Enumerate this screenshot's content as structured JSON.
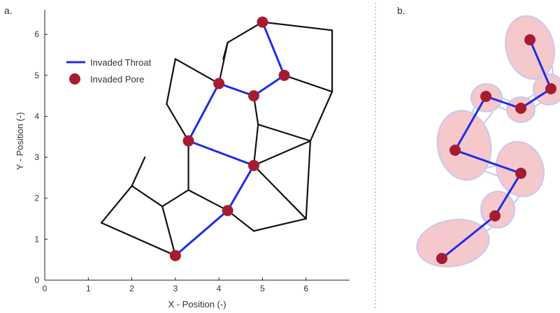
{
  "panel_a": {
    "label": "a.",
    "xlabel": "X - Position (-)",
    "ylabel": "Y - Position (-)",
    "xticks": [
      "0",
      "1",
      "2",
      "3",
      "4",
      "5",
      "6"
    ],
    "yticks": [
      "0",
      "1",
      "2",
      "3",
      "4",
      "5",
      "6"
    ],
    "legend": {
      "throat_label": "Invaded Throat",
      "pore_label": "Invaded Pore"
    }
  },
  "panel_b": {
    "label": "b."
  },
  "colors": {
    "network_edge": "#111111",
    "invaded_throat": "#1f2de8",
    "invaded_pore": "#a51c30",
    "pore_body": "#f5c8cc",
    "pore_outline": "#c7c9ee",
    "throat_tube": "#c6c8f0",
    "separator": "#999999"
  },
  "chart_data": {
    "type": "scatter",
    "xlim": [
      0,
      7
    ],
    "ylim": [
      0,
      6.6
    ],
    "network_edges": [
      [
        [
          2.3,
          3.0
        ],
        [
          2.0,
          2.3
        ]
      ],
      [
        [
          2.0,
          2.3
        ],
        [
          1.3,
          1.4
        ]
      ],
      [
        [
          2.0,
          2.3
        ],
        [
          2.7,
          1.8
        ]
      ],
      [
        [
          1.3,
          1.4
        ],
        [
          3.0,
          0.6
        ]
      ],
      [
        [
          2.7,
          1.8
        ],
        [
          3.0,
          0.6
        ]
      ],
      [
        [
          2.7,
          1.8
        ],
        [
          3.3,
          2.2
        ]
      ],
      [
        [
          3.3,
          2.2
        ],
        [
          3.3,
          3.4
        ]
      ],
      [
        [
          3.3,
          2.2
        ],
        [
          4.2,
          1.7
        ]
      ],
      [
        [
          3.3,
          3.4
        ],
        [
          2.8,
          4.3
        ]
      ],
      [
        [
          2.8,
          4.3
        ],
        [
          3.0,
          5.4
        ]
      ],
      [
        [
          3.0,
          5.4
        ],
        [
          4.0,
          4.8
        ]
      ],
      [
        [
          4.0,
          4.8
        ],
        [
          4.2,
          5.8
        ]
      ],
      [
        [
          4.2,
          5.8
        ],
        [
          4.1,
          5.4
        ]
      ],
      [
        [
          4.2,
          5.8
        ],
        [
          5.0,
          6.3
        ]
      ],
      [
        [
          5.0,
          6.3
        ],
        [
          6.6,
          6.1
        ]
      ],
      [
        [
          6.6,
          6.1
        ],
        [
          6.6,
          4.6
        ]
      ],
      [
        [
          6.6,
          4.6
        ],
        [
          5.5,
          5.0
        ]
      ],
      [
        [
          6.6,
          4.6
        ],
        [
          6.1,
          3.4
        ]
      ],
      [
        [
          4.8,
          4.5
        ],
        [
          4.9,
          3.8
        ]
      ],
      [
        [
          4.9,
          3.8
        ],
        [
          4.8,
          2.8
        ]
      ],
      [
        [
          4.9,
          3.8
        ],
        [
          6.1,
          3.4
        ]
      ],
      [
        [
          6.1,
          3.4
        ],
        [
          4.8,
          2.8
        ]
      ],
      [
        [
          6.1,
          3.4
        ],
        [
          6.0,
          1.5
        ]
      ],
      [
        [
          4.8,
          2.8
        ],
        [
          6.0,
          1.5
        ]
      ],
      [
        [
          4.8,
          2.8
        ],
        [
          4.2,
          1.7
        ]
      ],
      [
        [
          4.2,
          1.7
        ],
        [
          4.8,
          1.2
        ]
      ],
      [
        [
          4.8,
          1.2
        ],
        [
          6.0,
          1.5
        ]
      ]
    ],
    "invaded_throats": [
      [
        [
          3.0,
          0.6
        ],
        [
          4.2,
          1.7
        ]
      ],
      [
        [
          4.2,
          1.7
        ],
        [
          4.8,
          2.8
        ]
      ],
      [
        [
          4.8,
          2.8
        ],
        [
          3.3,
          3.4
        ]
      ],
      [
        [
          3.3,
          3.4
        ],
        [
          4.0,
          4.8
        ]
      ],
      [
        [
          4.0,
          4.8
        ],
        [
          4.8,
          4.5
        ]
      ],
      [
        [
          4.8,
          4.5
        ],
        [
          5.5,
          5.0
        ]
      ],
      [
        [
          5.5,
          5.0
        ],
        [
          5.0,
          6.3
        ]
      ]
    ],
    "invaded_pores": [
      [
        3.0,
        0.6
      ],
      [
        4.2,
        1.7
      ],
      [
        4.8,
        2.8
      ],
      [
        3.3,
        3.4
      ],
      [
        4.0,
        4.8
      ],
      [
        4.8,
        4.5
      ],
      [
        5.5,
        5.0
      ],
      [
        5.0,
        6.3
      ]
    ]
  }
}
